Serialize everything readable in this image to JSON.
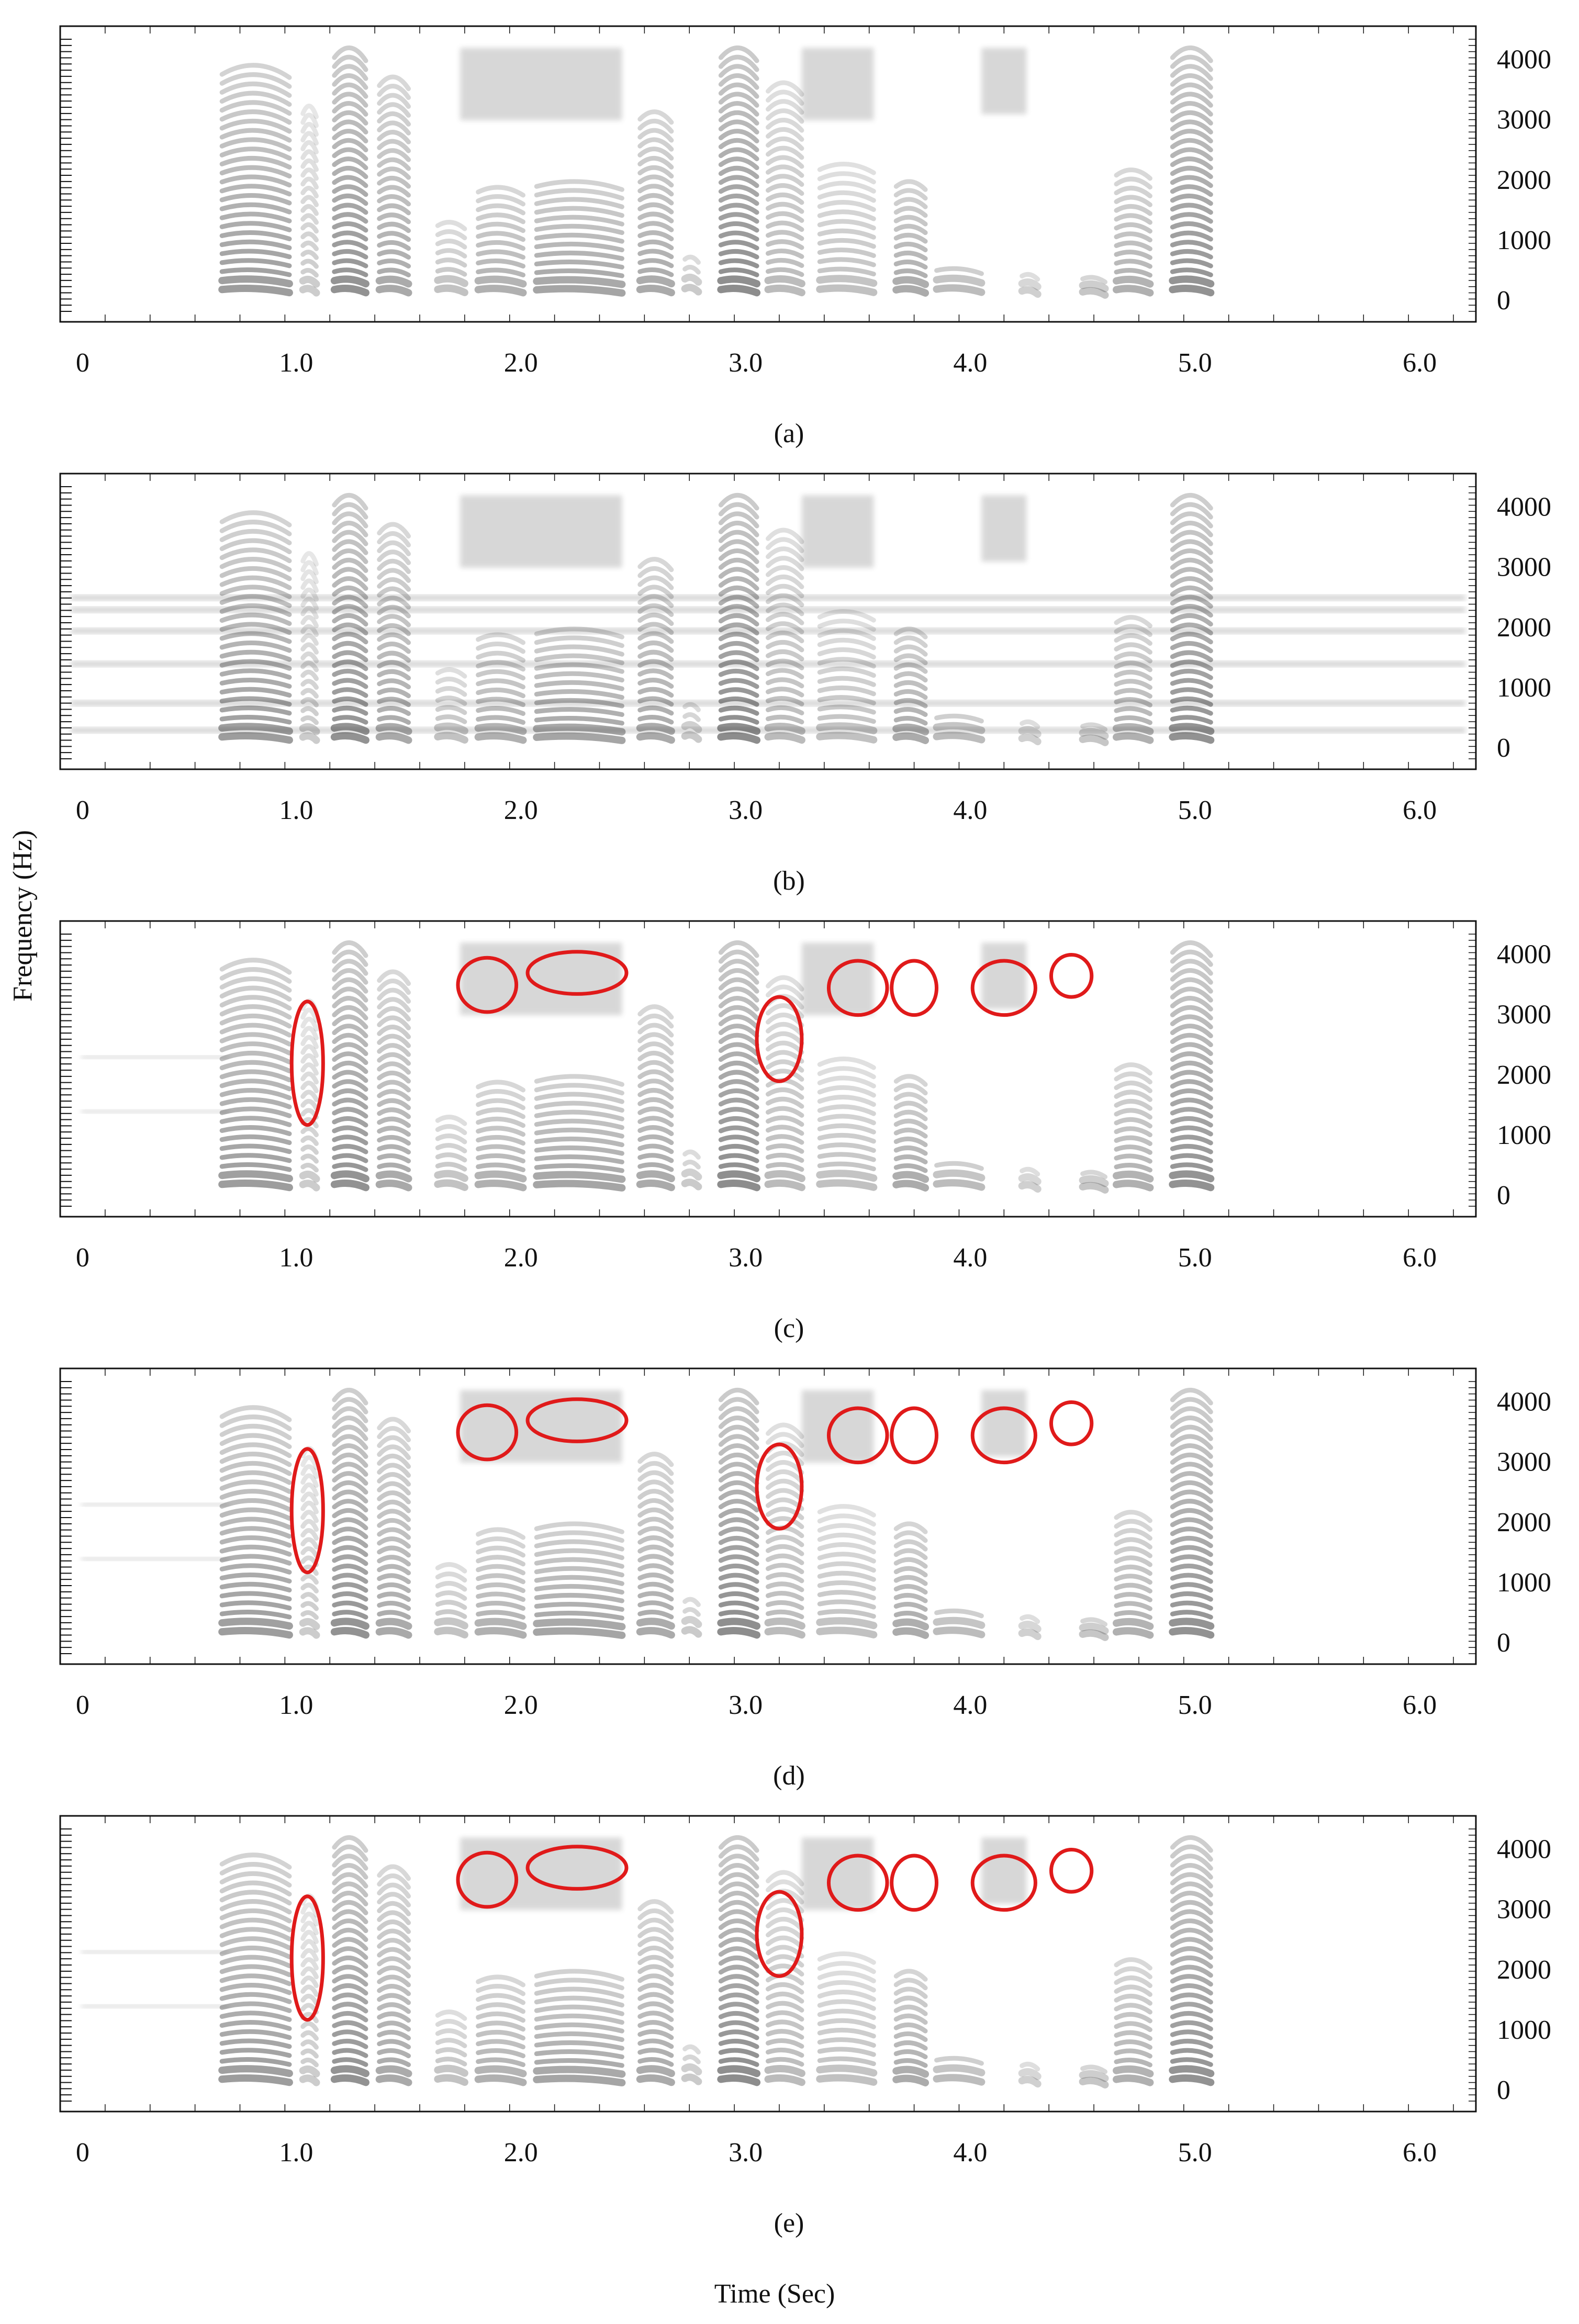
{
  "figure": {
    "ylabel": "Frequency (Hz)",
    "xlabel": "Time (Sec)"
  },
  "chart_data": [
    {
      "type": "heatmap",
      "panel_label": "(a)",
      "x_ticks": [
        "0",
        "1.0",
        "2.0",
        "3.0",
        "4.0",
        "5.0",
        "6.0"
      ],
      "y_ticks": [
        "0",
        "1000",
        "2000",
        "3000",
        "4000"
      ],
      "xlim": [
        0,
        6.3
      ],
      "ylim": [
        0,
        4000
      ],
      "noise_bands": [],
      "residual_bands": [],
      "highlights": []
    },
    {
      "type": "heatmap",
      "panel_label": "(b)",
      "x_ticks": [
        "0",
        "1.0",
        "2.0",
        "3.0",
        "4.0",
        "5.0",
        "6.0"
      ],
      "y_ticks": [
        "0",
        "1000",
        "2000",
        "3000",
        "4000"
      ],
      "xlim": [
        0,
        6.3
      ],
      "ylim": [
        0,
        4000
      ],
      "noise_bands": [
        300,
        750,
        1400,
        1950,
        2300,
        2500
      ],
      "residual_bands": [],
      "highlights": []
    },
    {
      "type": "heatmap",
      "panel_label": "(c)",
      "x_ticks": [
        "0",
        "1.0",
        "2.0",
        "3.0",
        "4.0",
        "5.0",
        "6.0"
      ],
      "y_ticks": [
        "0",
        "1000",
        "2000",
        "3000",
        "4000"
      ],
      "xlim": [
        0,
        6.3
      ],
      "ylim": [
        0,
        4000
      ],
      "noise_bands": [],
      "residual_bands": [
        1400,
        2300
      ],
      "highlights": [
        {
          "t": 1.1,
          "f": 2200,
          "rt": 0.07,
          "rf": 2050
        },
        {
          "t": 1.9,
          "f": 3500,
          "rt": 0.13,
          "rf": 900
        },
        {
          "t": 2.3,
          "f": 3700,
          "rt": 0.22,
          "rf": 700
        },
        {
          "t": 3.2,
          "f": 2600,
          "rt": 0.1,
          "rf": 1400
        },
        {
          "t": 3.55,
          "f": 3450,
          "rt": 0.13,
          "rf": 900
        },
        {
          "t": 3.8,
          "f": 3450,
          "rt": 0.1,
          "rf": 900
        },
        {
          "t": 4.2,
          "f": 3450,
          "rt": 0.14,
          "rf": 900
        },
        {
          "t": 4.5,
          "f": 3650,
          "rt": 0.09,
          "rf": 700
        }
      ]
    },
    {
      "type": "heatmap",
      "panel_label": "(d)",
      "x_ticks": [
        "0",
        "1.0",
        "2.0",
        "3.0",
        "4.0",
        "5.0",
        "6.0"
      ],
      "y_ticks": [
        "0",
        "1000",
        "2000",
        "3000",
        "4000"
      ],
      "xlim": [
        0,
        6.3
      ],
      "ylim": [
        0,
        4000
      ],
      "noise_bands": [],
      "residual_bands": [
        1400,
        2300
      ],
      "highlights": [
        {
          "t": 1.1,
          "f": 2200,
          "rt": 0.07,
          "rf": 2050
        },
        {
          "t": 1.9,
          "f": 3500,
          "rt": 0.13,
          "rf": 900
        },
        {
          "t": 2.3,
          "f": 3700,
          "rt": 0.22,
          "rf": 700
        },
        {
          "t": 3.2,
          "f": 2600,
          "rt": 0.1,
          "rf": 1400
        },
        {
          "t": 3.55,
          "f": 3450,
          "rt": 0.13,
          "rf": 900
        },
        {
          "t": 3.8,
          "f": 3450,
          "rt": 0.1,
          "rf": 900
        },
        {
          "t": 4.2,
          "f": 3450,
          "rt": 0.14,
          "rf": 900
        },
        {
          "t": 4.5,
          "f": 3650,
          "rt": 0.09,
          "rf": 700
        }
      ]
    },
    {
      "type": "heatmap",
      "panel_label": "(e)",
      "x_ticks": [
        "0",
        "1.0",
        "2.0",
        "3.0",
        "4.0",
        "5.0",
        "6.0"
      ],
      "y_ticks": [
        "0",
        "1000",
        "2000",
        "3000",
        "4000"
      ],
      "xlim": [
        0,
        6.3
      ],
      "ylim": [
        0,
        4000
      ],
      "noise_bands": [],
      "residual_bands": [
        1400,
        2300
      ],
      "highlights": [
        {
          "t": 1.1,
          "f": 2200,
          "rt": 0.07,
          "rf": 2050
        },
        {
          "t": 1.9,
          "f": 3500,
          "rt": 0.13,
          "rf": 900
        },
        {
          "t": 2.3,
          "f": 3700,
          "rt": 0.22,
          "rf": 700
        },
        {
          "t": 3.2,
          "f": 2600,
          "rt": 0.1,
          "rf": 1400
        },
        {
          "t": 3.55,
          "f": 3450,
          "rt": 0.13,
          "rf": 900
        },
        {
          "t": 3.8,
          "f": 3450,
          "rt": 0.1,
          "rf": 900
        },
        {
          "t": 4.2,
          "f": 3450,
          "rt": 0.14,
          "rf": 900
        },
        {
          "t": 4.5,
          "f": 3650,
          "rt": 0.09,
          "rf": 700
        }
      ]
    }
  ],
  "speech_segments": [
    {
      "t0": 0.72,
      "t1": 1.02,
      "fmax": 4000,
      "level": 0.85
    },
    {
      "t0": 1.08,
      "t1": 1.14,
      "fmax": 3300,
      "level": 0.45
    },
    {
      "t0": 1.22,
      "t1": 1.36,
      "fmax": 4300,
      "level": 0.95
    },
    {
      "t0": 1.42,
      "t1": 1.55,
      "fmax": 3800,
      "level": 0.75
    },
    {
      "t0": 1.68,
      "t1": 1.8,
      "fmax": 1300,
      "level": 0.55
    },
    {
      "t0": 1.86,
      "t1": 2.06,
      "fmax": 1900,
      "level": 0.7
    },
    {
      "t0": 2.12,
      "t1": 2.5,
      "fmax": 2000,
      "level": 0.8
    },
    {
      "t0": 2.58,
      "t1": 2.72,
      "fmax": 3200,
      "level": 0.75
    },
    {
      "t0": 2.78,
      "t1": 2.84,
      "fmax": 700,
      "level": 0.5
    },
    {
      "t0": 2.94,
      "t1": 3.1,
      "fmax": 4300,
      "level": 1.0
    },
    {
      "t0": 3.15,
      "t1": 3.3,
      "fmax": 3700,
      "level": 0.6
    },
    {
      "t0": 3.38,
      "t1": 3.62,
      "fmax": 2300,
      "level": 0.55
    },
    {
      "t0": 3.72,
      "t1": 3.85,
      "fmax": 2000,
      "level": 0.75
    },
    {
      "t0": 3.9,
      "t1": 4.1,
      "fmax": 500,
      "level": 0.65
    },
    {
      "t0": 4.28,
      "t1": 4.35,
      "fmax": 400,
      "level": 0.45
    },
    {
      "t0": 4.55,
      "t1": 4.65,
      "fmax": 350,
      "level": 0.55
    },
    {
      "t0": 4.7,
      "t1": 4.85,
      "fmax": 2200,
      "level": 0.7
    },
    {
      "t0": 4.95,
      "t1": 5.12,
      "fmax": 4300,
      "level": 0.95
    }
  ],
  "colors": {
    "ink": "#111111",
    "spectrogram": "#2a2a2a",
    "highlight": "#e01a1a"
  }
}
